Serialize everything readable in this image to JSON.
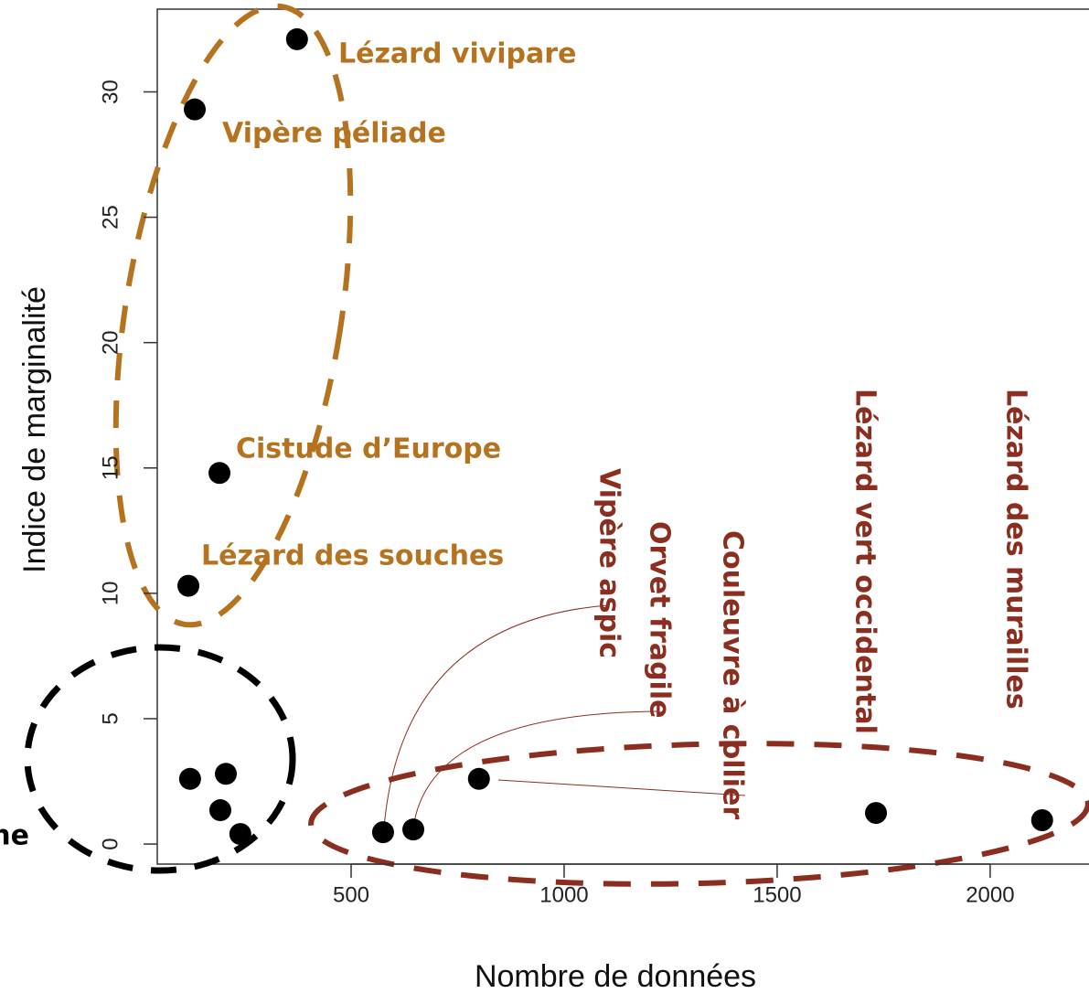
{
  "chart_data": {
    "type": "scatter",
    "x_label": "Nombre de données",
    "y_label": "Indice de marginalité",
    "xlim": [
      45,
      2232
    ],
    "ylim": [
      -0.8,
      33.3
    ],
    "xticks": [
      500,
      1000,
      1500,
      2000
    ],
    "yticks": [
      0,
      5,
      10,
      15,
      20,
      25,
      30
    ],
    "series": [
      {
        "color": "#b5731f",
        "x": [
          373,
          133,
          191,
          118
        ],
        "values": [
          32.1,
          29.3,
          14.8,
          10.3
        ],
        "labels": [
          "Lézard vivipare",
          "Vipère péliade",
          "Cistude d’Europe",
          "Lézard des souches"
        ]
      },
      {
        "color": "#000000",
        "x": [
          122,
          206,
          193,
          240
        ],
        "values": [
          2.6,
          2.8,
          1.35,
          0.4
        ],
        "labels": [
          "ne",
          null,
          null,
          null
        ]
      },
      {
        "color": "#8b2e1f",
        "x": [
          575,
          646,
          800,
          1732,
          2122
        ],
        "values": [
          0.47,
          0.58,
          2.6,
          1.24,
          0.95
        ],
        "labels": [
          "Vipère aspic",
          "Orvet fragile",
          "Couleuvre à collier",
          "Lézard vert occidental",
          "Lézard des murailles"
        ]
      }
    ]
  }
}
